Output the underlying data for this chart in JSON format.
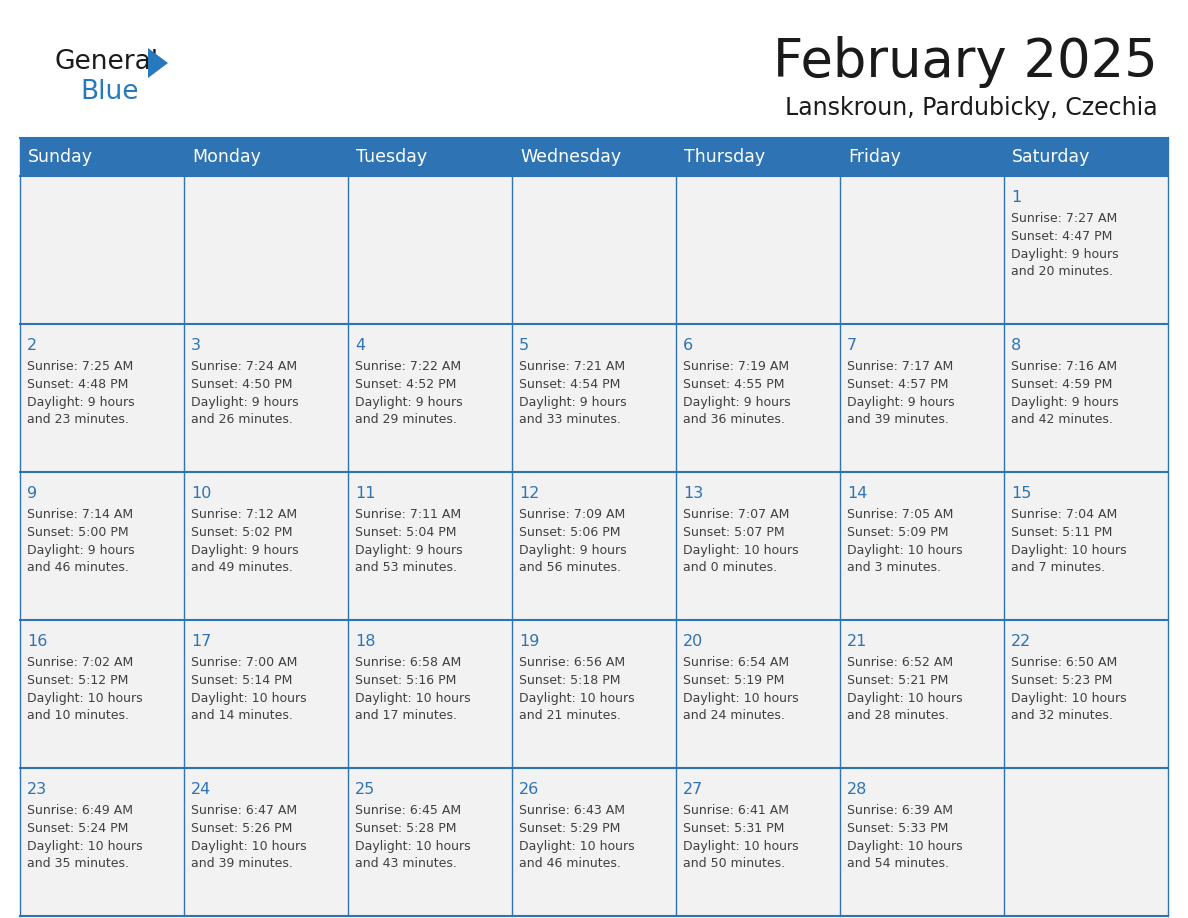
{
  "title": "February 2025",
  "subtitle": "Lanskroun, Pardubicky, Czechia",
  "header_bg": "#2E74B5",
  "header_text_color": "#FFFFFF",
  "day_names": [
    "Sunday",
    "Monday",
    "Tuesday",
    "Wednesday",
    "Thursday",
    "Friday",
    "Saturday"
  ],
  "cell_bg": "#F2F2F2",
  "cell_bg_white": "#FFFFFF",
  "border_color": "#2E74B5",
  "number_color": "#2E74B5",
  "text_color": "#404040",
  "logo_general_color": "#1A1A1A",
  "logo_blue_color": "#2779BD",
  "days": [
    {
      "day": 1,
      "col": 6,
      "row": 0,
      "sunrise": "7:27 AM",
      "sunset": "4:47 PM",
      "daylight": "9 hours and 20 minutes."
    },
    {
      "day": 2,
      "col": 0,
      "row": 1,
      "sunrise": "7:25 AM",
      "sunset": "4:48 PM",
      "daylight": "9 hours and 23 minutes."
    },
    {
      "day": 3,
      "col": 1,
      "row": 1,
      "sunrise": "7:24 AM",
      "sunset": "4:50 PM",
      "daylight": "9 hours and 26 minutes."
    },
    {
      "day": 4,
      "col": 2,
      "row": 1,
      "sunrise": "7:22 AM",
      "sunset": "4:52 PM",
      "daylight": "9 hours and 29 minutes."
    },
    {
      "day": 5,
      "col": 3,
      "row": 1,
      "sunrise": "7:21 AM",
      "sunset": "4:54 PM",
      "daylight": "9 hours and 33 minutes."
    },
    {
      "day": 6,
      "col": 4,
      "row": 1,
      "sunrise": "7:19 AM",
      "sunset": "4:55 PM",
      "daylight": "9 hours and 36 minutes."
    },
    {
      "day": 7,
      "col": 5,
      "row": 1,
      "sunrise": "7:17 AM",
      "sunset": "4:57 PM",
      "daylight": "9 hours and 39 minutes."
    },
    {
      "day": 8,
      "col": 6,
      "row": 1,
      "sunrise": "7:16 AM",
      "sunset": "4:59 PM",
      "daylight": "9 hours and 42 minutes."
    },
    {
      "day": 9,
      "col": 0,
      "row": 2,
      "sunrise": "7:14 AM",
      "sunset": "5:00 PM",
      "daylight": "9 hours and 46 minutes."
    },
    {
      "day": 10,
      "col": 1,
      "row": 2,
      "sunrise": "7:12 AM",
      "sunset": "5:02 PM",
      "daylight": "9 hours and 49 minutes."
    },
    {
      "day": 11,
      "col": 2,
      "row": 2,
      "sunrise": "7:11 AM",
      "sunset": "5:04 PM",
      "daylight": "9 hours and 53 minutes."
    },
    {
      "day": 12,
      "col": 3,
      "row": 2,
      "sunrise": "7:09 AM",
      "sunset": "5:06 PM",
      "daylight": "9 hours and 56 minutes."
    },
    {
      "day": 13,
      "col": 4,
      "row": 2,
      "sunrise": "7:07 AM",
      "sunset": "5:07 PM",
      "daylight": "10 hours and 0 minutes."
    },
    {
      "day": 14,
      "col": 5,
      "row": 2,
      "sunrise": "7:05 AM",
      "sunset": "5:09 PM",
      "daylight": "10 hours and 3 minutes."
    },
    {
      "day": 15,
      "col": 6,
      "row": 2,
      "sunrise": "7:04 AM",
      "sunset": "5:11 PM",
      "daylight": "10 hours and 7 minutes."
    },
    {
      "day": 16,
      "col": 0,
      "row": 3,
      "sunrise": "7:02 AM",
      "sunset": "5:12 PM",
      "daylight": "10 hours and 10 minutes."
    },
    {
      "day": 17,
      "col": 1,
      "row": 3,
      "sunrise": "7:00 AM",
      "sunset": "5:14 PM",
      "daylight": "10 hours and 14 minutes."
    },
    {
      "day": 18,
      "col": 2,
      "row": 3,
      "sunrise": "6:58 AM",
      "sunset": "5:16 PM",
      "daylight": "10 hours and 17 minutes."
    },
    {
      "day": 19,
      "col": 3,
      "row": 3,
      "sunrise": "6:56 AM",
      "sunset": "5:18 PM",
      "daylight": "10 hours and 21 minutes."
    },
    {
      "day": 20,
      "col": 4,
      "row": 3,
      "sunrise": "6:54 AM",
      "sunset": "5:19 PM",
      "daylight": "10 hours and 24 minutes."
    },
    {
      "day": 21,
      "col": 5,
      "row": 3,
      "sunrise": "6:52 AM",
      "sunset": "5:21 PM",
      "daylight": "10 hours and 28 minutes."
    },
    {
      "day": 22,
      "col": 6,
      "row": 3,
      "sunrise": "6:50 AM",
      "sunset": "5:23 PM",
      "daylight": "10 hours and 32 minutes."
    },
    {
      "day": 23,
      "col": 0,
      "row": 4,
      "sunrise": "6:49 AM",
      "sunset": "5:24 PM",
      "daylight": "10 hours and 35 minutes."
    },
    {
      "day": 24,
      "col": 1,
      "row": 4,
      "sunrise": "6:47 AM",
      "sunset": "5:26 PM",
      "daylight": "10 hours and 39 minutes."
    },
    {
      "day": 25,
      "col": 2,
      "row": 4,
      "sunrise": "6:45 AM",
      "sunset": "5:28 PM",
      "daylight": "10 hours and 43 minutes."
    },
    {
      "day": 26,
      "col": 3,
      "row": 4,
      "sunrise": "6:43 AM",
      "sunset": "5:29 PM",
      "daylight": "10 hours and 46 minutes."
    },
    {
      "day": 27,
      "col": 4,
      "row": 4,
      "sunrise": "6:41 AM",
      "sunset": "5:31 PM",
      "daylight": "10 hours and 50 minutes."
    },
    {
      "day": 28,
      "col": 5,
      "row": 4,
      "sunrise": "6:39 AM",
      "sunset": "5:33 PM",
      "daylight": "10 hours and 54 minutes."
    }
  ],
  "num_rows": 5,
  "num_cols": 7
}
